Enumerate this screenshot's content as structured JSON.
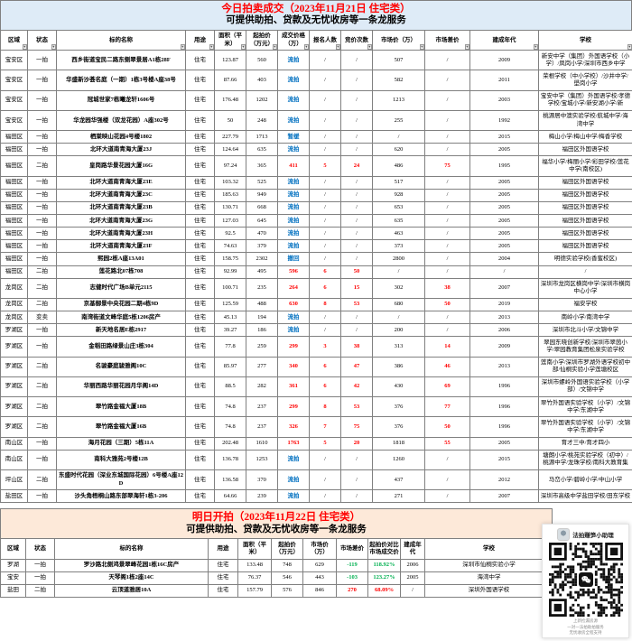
{
  "colors": {
    "banner_blue": "#DEEBF7",
    "banner_orange": "#FDE9D9",
    "title_red": "#FF0000",
    "status_blue": "#0070C0",
    "highlight_red": "#FF0000",
    "highlight_green": "#00B050"
  },
  "today": {
    "title": "今日拍卖成交（2023年11月21日 住宅类）",
    "subtitle": "可提供助拍、贷款及无忧收房等一条龙服务",
    "columns": [
      "区域",
      "状态",
      "标的名称",
      "用途",
      "面积（平米）",
      "起拍价（万元）",
      "成交价格（万）",
      "报名人数",
      "竞价次数",
      "市场价（万）",
      "市场差价",
      "建成年代",
      "学校"
    ],
    "rows": [
      [
        "宝安区",
        "一拍",
        "西乡街道宝民二路东侧翠景居A1栋28F",
        "住宅",
        "123.87",
        "560",
        "流拍",
        "/",
        "/",
        "507",
        "/",
        "2009",
        "新安中学（集团）外国语学校（小学）/凤岗小学/深圳市西乡中学"
      ],
      [
        "宝安区",
        "一拍",
        "华盛新沙荟名庭（一期）1栋3号楼A座38号",
        "住宅",
        "87.66",
        "403",
        "流拍",
        "/",
        "/",
        "582",
        "/",
        "2011",
        "荣根学校（中小学校）/沙井中学/壆岗小学"
      ],
      [
        "宝安区",
        "一拍",
        "冠城世家7栋曦龙轩1606号",
        "住宅",
        "176.48",
        "1202",
        "流拍",
        "/",
        "/",
        "1213",
        "/",
        "2003",
        "宝安中学（集团）外国语学校/孝德学校/宝城小学/新安湖小学/新"
      ],
      [
        "宝安区",
        "一拍",
        "华龙园华强楼（双龙花园）A座302号",
        "住宅",
        "50",
        "248",
        "流拍",
        "/",
        "/",
        "255",
        "/",
        "1992",
        "桃源居中澳实验学校/航城中学/海湾中学"
      ],
      [
        "福田区",
        "一拍",
        "栖棠映山花园4号楼1802",
        "住宅",
        "227.79",
        "1713",
        "暂缓",
        "/",
        "/",
        "/",
        "/",
        "2015",
        "梅山小学/梅山中学/梅香学校"
      ],
      [
        "福田区",
        "一拍",
        "北环大道南青海大厦23J",
        "住宅",
        "124.64",
        "635",
        "流拍",
        "/",
        "/",
        "620",
        "/",
        "2005",
        "福田区外国语学校"
      ],
      [
        "福田区",
        "二拍",
        "皇岗路华景花园大厦16G",
        "住宅",
        "97.24",
        "365",
        "411",
        "5",
        "24",
        "486",
        "75",
        "1995",
        "福华小学/梅丽小学/彩田学校/莲花中学(南校区)"
      ],
      [
        "福田区",
        "一拍",
        "北环大道南青海大厦23E",
        "住宅",
        "103.32",
        "525",
        "流拍",
        "/",
        "/",
        "517",
        "/",
        "2005",
        "福田区外国语学校"
      ],
      [
        "福田区",
        "一拍",
        "北环大道南青海大厦23C",
        "住宅",
        "185.63",
        "949",
        "流拍",
        "/",
        "/",
        "928",
        "/",
        "2005",
        "福田区外国语学校"
      ],
      [
        "福田区",
        "一拍",
        "北环大道南青海大厦23B",
        "住宅",
        "130.71",
        "668",
        "流拍",
        "/",
        "/",
        "653",
        "/",
        "2005",
        "福田区外国语学校"
      ],
      [
        "福田区",
        "一拍",
        "北环大道南青海大厦23G",
        "住宅",
        "127.03",
        "645",
        "流拍",
        "/",
        "/",
        "635",
        "/",
        "2005",
        "福田区外国语学校"
      ],
      [
        "福田区",
        "一拍",
        "北环大道南青海大厦23H",
        "住宅",
        "92.5",
        "470",
        "流拍",
        "/",
        "/",
        "463",
        "/",
        "2005",
        "福田区外国语学校"
      ],
      [
        "福田区",
        "一拍",
        "北环大道南青海大厦23F",
        "住宅",
        "74.63",
        "379",
        "流拍",
        "/",
        "/",
        "373",
        "/",
        "2005",
        "福田区外国语学校"
      ],
      [
        "福田区",
        "一拍",
        "熙园2栋A座13A01",
        "住宅",
        "158.75",
        "2302",
        "撤回",
        "/",
        "/",
        "2800",
        "/",
        "2004",
        "明德实验学校(香蜜校区)"
      ],
      [
        "福田区",
        "二拍",
        "莲花路北07栋708",
        "住宅",
        "92.99",
        "495",
        "596",
        "6",
        "50",
        "/",
        "/",
        "/",
        "/"
      ],
      [
        "龙岗区",
        "二拍",
        "志健时代广场B单元2115",
        "住宅",
        "100.71",
        "235",
        "264",
        "6",
        "15",
        "302",
        "38",
        "2007",
        "深圳市龙岗区横岗中学/深圳市横岗中心小学"
      ],
      [
        "龙岗区",
        "二拍",
        "京基御景中央花园二期4栋9D",
        "住宅",
        "125.59",
        "488",
        "630",
        "8",
        "53",
        "680",
        "50",
        "2019",
        "福安学校"
      ],
      [
        "龙岗区",
        "变卖",
        "南湾街道文峰华庭5栋1206房产",
        "住宅",
        "45.13",
        "194",
        "流拍",
        "/",
        "/",
        "/",
        "/",
        "2013",
        "南岭小学/南湾中学"
      ],
      [
        "罗湖区",
        "一拍",
        "新天地名居E栋2917",
        "住宅",
        "39.27",
        "186",
        "流拍",
        "/",
        "/",
        "200",
        "/",
        "2006",
        "深圳市北斗小学/文锦中学"
      ],
      [
        "罗湖区",
        "一拍",
        "金稻田路绿景山庄3栋304",
        "住宅",
        "77.8",
        "259",
        "299",
        "3",
        "38",
        "313",
        "14",
        "2009",
        "翠园东晓创新学校/深圳市翠茵小学/翠园教育集团松泉实验学校"
      ],
      [
        "罗湖区",
        "二拍",
        "名骏豪庭骏雅阁10C",
        "住宅",
        "85.97",
        "277",
        "340",
        "6",
        "47",
        "386",
        "46",
        "2013",
        "莲南小学/深圳市罗湖外语学校初中部/仙桐实验小学莲塘校区"
      ],
      [
        "罗湖区",
        "二拍",
        "华丽西路华丽花园月华阁14D",
        "住宅",
        "88.5",
        "282",
        "361",
        "6",
        "42",
        "430",
        "69",
        "1996",
        "深圳市螺岭外国语实验学校（小学部）/文锦中学"
      ],
      [
        "罗湖区",
        "二拍",
        "翠竹路金福大厦18B",
        "住宅",
        "74.8",
        "237",
        "299",
        "8",
        "53",
        "376",
        "77",
        "1996",
        "翠竹外国语实验学校（小学）/文锦中学/东湖中学"
      ],
      [
        "罗湖区",
        "二拍",
        "翠竹路金福大厦16B",
        "住宅",
        "74.8",
        "237",
        "326",
        "7",
        "75",
        "376",
        "50",
        "1996",
        "翠竹外国语实验学校（小学）/文锦中学/东湖中学"
      ],
      [
        "南山区",
        "一拍",
        "海月花园（三期）5栋11A",
        "住宅",
        "202.48",
        "1610",
        "1763",
        "5",
        "20",
        "1818",
        "55",
        "2005",
        "育才三中/育才四小"
      ],
      [
        "南山区",
        "一拍",
        "南科大雅苑2号楼12B",
        "住宅",
        "136.78",
        "1253",
        "流拍",
        "/",
        "/",
        "1260",
        "/",
        "2015",
        "塘朗小学/桃苑实验学校（初中）/桃源中学/龙珠学校/南科大教育集"
      ],
      [
        "坪山区",
        "二拍",
        "东盛时代花园（深业东城国际花园）6号楼A座12D",
        "住宅",
        "136.58",
        "370",
        "流拍",
        "/",
        "/",
        "437",
        "/",
        "2012",
        "马峦小学/碧岭小学/中山小学"
      ],
      [
        "盐田区",
        "一拍",
        "沙头角梧桐山路东部翠海轩1栋3-206",
        "住宅",
        "64.66",
        "239",
        "流拍",
        "/",
        "/",
        "271",
        "/",
        "2007",
        "深圳市高级中学盐田学校/田东学校"
      ]
    ]
  },
  "tomorrow": {
    "title": "明日开拍（2023年11月22日 住宅类）",
    "subtitle": "可提供助拍、贷款及无忧收房等一条龙服务",
    "columns": [
      "区域",
      "状态",
      "标的名称",
      "用途",
      "面积（平米）",
      "起拍价（万元）",
      "市场价（万）",
      "市场差价",
      "起拍价对比市场成交价",
      "建成年代",
      "学校"
    ],
    "rows": [
      [
        "罗湖",
        "一拍",
        "罗沙路北侧鸿景翠峰花园1栋16C房产",
        "住宅",
        "133.48",
        "748",
        "629",
        "-119",
        "118.92%",
        "2006",
        "深圳市仙桐实验小学"
      ],
      [
        "宝安",
        "一拍",
        "天琴阁1栋2座14C",
        "住宅",
        "76.37",
        "546",
        "443",
        "-103",
        "123.27%",
        "2005",
        "海湾中学"
      ],
      [
        "盐田",
        "二拍",
        "云顶道雅居10A",
        "住宅",
        "157.79",
        "576",
        "846",
        "270",
        "68.09%",
        "/",
        "深圳外国语学校"
      ]
    ]
  },
  "qr_card": {
    "label": "法拍赚笋小助理",
    "caption_lines": [
      "上新捡漏房源",
      "一对一法拍助拍服务",
      "无忧收房全程支持"
    ]
  }
}
